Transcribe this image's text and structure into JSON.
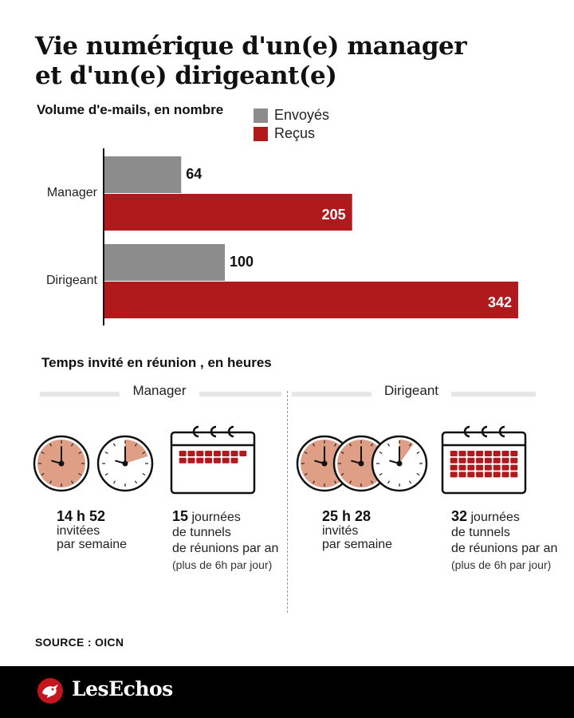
{
  "title_line1": "Vie numérique d'un(e) manager",
  "title_line2": "et d'un(e) dirigeant(e)",
  "emails": {
    "subtitle": "Volume d'e-mails, en nombre"
  },
  "legend": {
    "sent": "Envoyés",
    "received": "Reçus"
  },
  "colors": {
    "sent": "#8c8c8c",
    "received": "#b11a1d",
    "clock_fill": "#df9f86",
    "clock_ring": "#111111"
  },
  "chart_data": {
    "type": "bar",
    "orientation": "horizontal",
    "title": "Volume d'e-mails, en nombre",
    "categories": [
      "Manager",
      "Dirigeant"
    ],
    "series": [
      {
        "name": "Envoyés",
        "values": [
          64,
          100
        ]
      },
      {
        "name": "Reçus",
        "values": [
          205,
          342
        ]
      }
    ],
    "xlim": [
      0,
      342
    ],
    "grid": false,
    "legend": "top-right"
  },
  "meetings": {
    "subtitle": "Temps invité en réunion , en heures",
    "manager": {
      "label": "Manager",
      "hours_value": "14 h 52",
      "hours_line2": "invitées",
      "hours_line3": "par semaine",
      "days_value": "15",
      "days_line1": "journées",
      "days_line2": "de tunnels",
      "days_line3": "de réunions par an",
      "days_note": "(plus de 6h par jour)",
      "clock_fractions": [
        1,
        0.2
      ],
      "calendar_days": 15
    },
    "director": {
      "label": "Dirigeant",
      "hours_value": "25 h 28",
      "hours_line2": "invités",
      "hours_line3": "par semaine",
      "days_value": "32",
      "days_line1": "journées",
      "days_line2": "de tunnels",
      "days_line3": "de réunions par an",
      "days_note": "(plus de 6h par jour)",
      "clock_fractions": [
        1,
        1,
        0.1
      ],
      "calendar_days": 32
    }
  },
  "source": "SOURCE : OICN",
  "brand": "LesEchos"
}
